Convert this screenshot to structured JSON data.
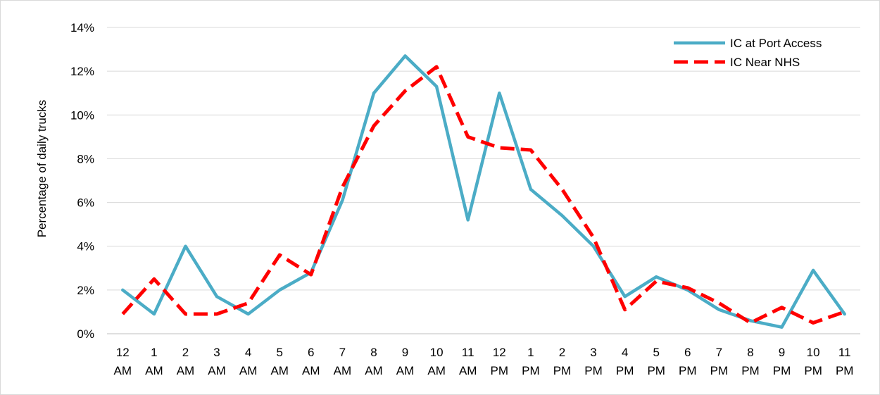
{
  "chart_data": {
    "type": "line",
    "title": "",
    "xlabel": "",
    "ylabel": "Percentage of daily trucks",
    "ylim": [
      0,
      14
    ],
    "yticks": [
      0,
      2,
      4,
      6,
      8,
      10,
      12,
      14
    ],
    "ytick_labels": [
      "0%",
      "2%",
      "4%",
      "6%",
      "8%",
      "10%",
      "12%",
      "14%"
    ],
    "grid": true,
    "legend_position": "top-right",
    "categories": [
      [
        "12",
        "AM"
      ],
      [
        "1",
        "AM"
      ],
      [
        "2",
        "AM"
      ],
      [
        "3",
        "AM"
      ],
      [
        "4",
        "AM"
      ],
      [
        "5",
        "AM"
      ],
      [
        "6",
        "AM"
      ],
      [
        "7",
        "AM"
      ],
      [
        "8",
        "AM"
      ],
      [
        "9",
        "AM"
      ],
      [
        "10",
        "AM"
      ],
      [
        "11",
        "AM"
      ],
      [
        "12",
        "PM"
      ],
      [
        "1",
        "PM"
      ],
      [
        "2",
        "PM"
      ],
      [
        "3",
        "PM"
      ],
      [
        "4",
        "PM"
      ],
      [
        "5",
        "PM"
      ],
      [
        "6",
        "PM"
      ],
      [
        "7",
        "PM"
      ],
      [
        "8",
        "PM"
      ],
      [
        "9",
        "PM"
      ],
      [
        "10",
        "PM"
      ],
      [
        "11",
        "PM"
      ]
    ],
    "series": [
      {
        "name": "IC at Port Access",
        "color": "#4bacc6",
        "style": "solid",
        "values": [
          2.0,
          0.9,
          4.0,
          1.7,
          0.9,
          2.0,
          2.8,
          6.1,
          11.0,
          12.7,
          11.3,
          5.2,
          11.0,
          6.6,
          5.4,
          4.0,
          1.7,
          2.6,
          2.0,
          1.1,
          0.6,
          0.3,
          2.9,
          0.9
        ]
      },
      {
        "name": "IC Near NHS",
        "color": "#ff0000",
        "style": "dashed",
        "values": [
          0.9,
          2.5,
          0.9,
          0.9,
          1.4,
          3.6,
          2.7,
          6.7,
          9.5,
          11.1,
          12.2,
          9.0,
          8.5,
          8.4,
          6.6,
          4.4,
          1.1,
          2.4,
          2.1,
          1.4,
          0.5,
          1.2,
          0.5,
          1.0
        ]
      }
    ]
  }
}
